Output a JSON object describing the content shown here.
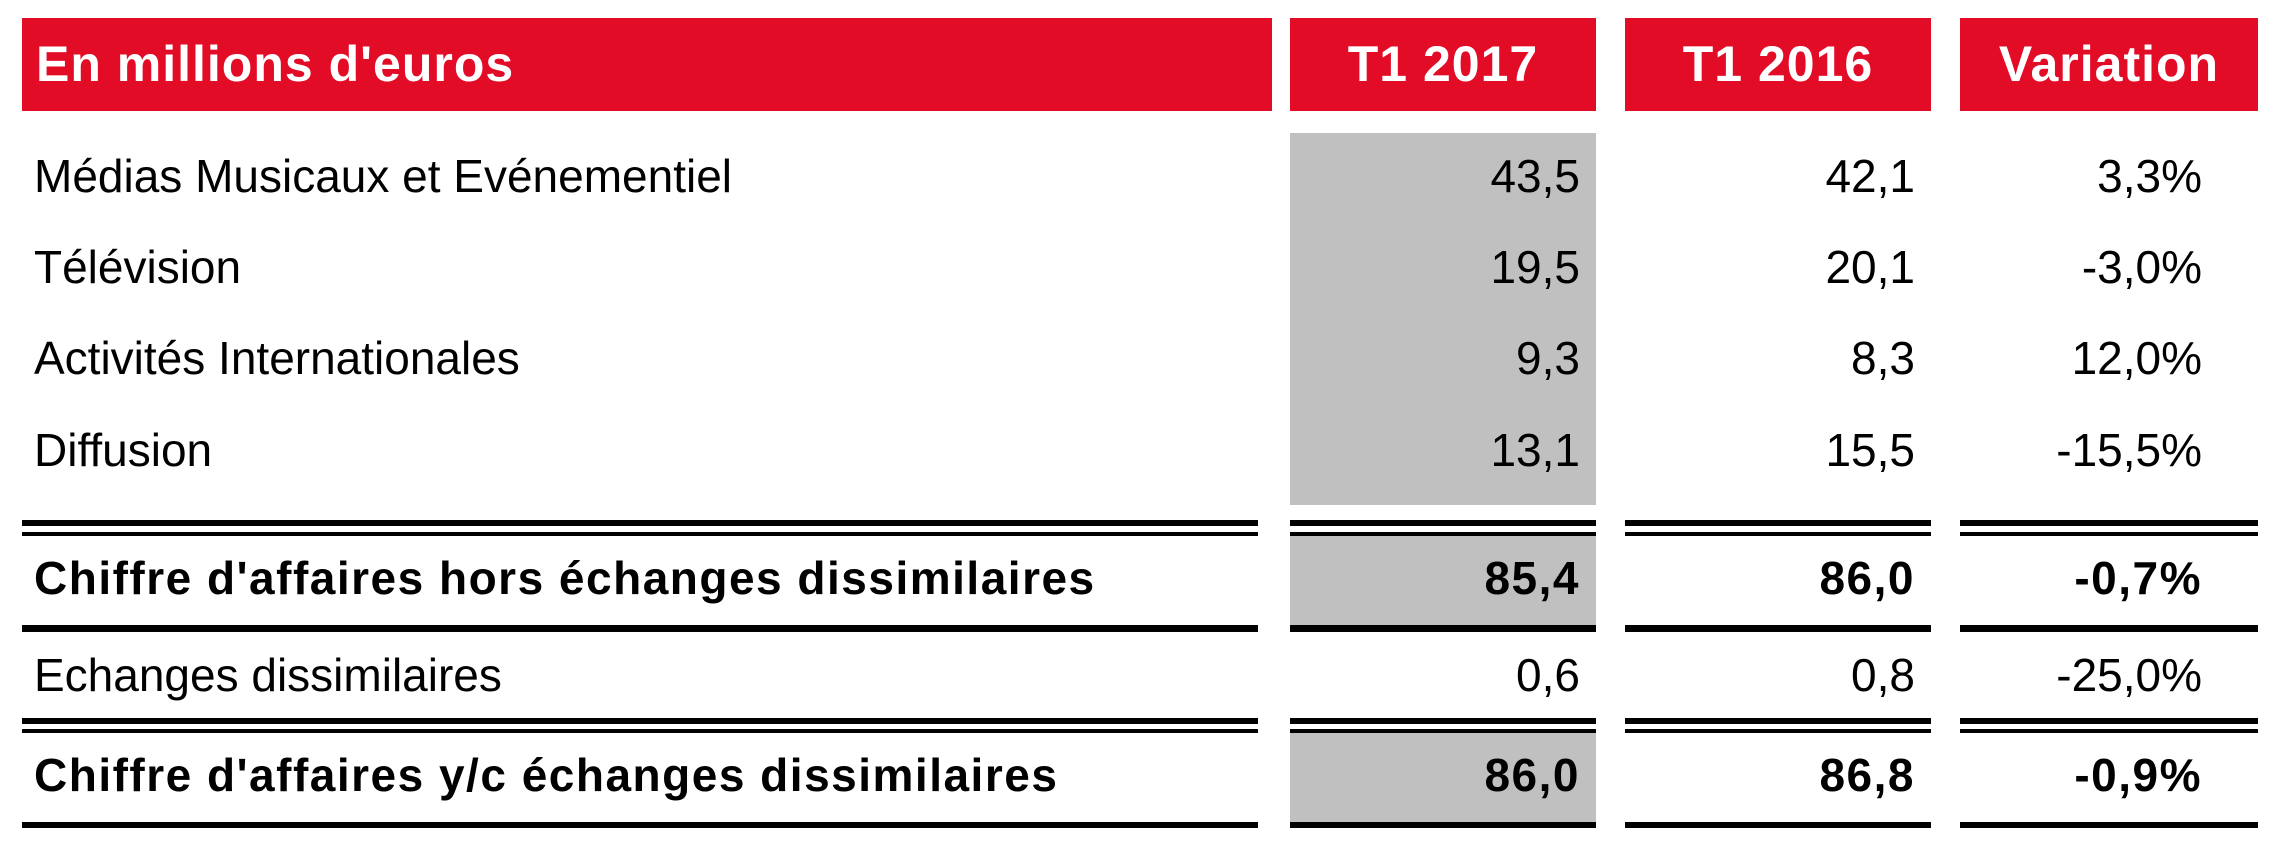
{
  "table": {
    "headers": [
      "En millions d'euros",
      "T1 2017",
      "T1 2016",
      "Variation"
    ],
    "rows": [
      {
        "label": "Médias Musicaux et Evénementiel",
        "t1_2017": "43,5",
        "t1_2016": "42,1",
        "variation": "3,3%",
        "bold": false
      },
      {
        "label": "Télévision",
        "t1_2017": "19,5",
        "t1_2016": "20,1",
        "variation": "-3,0%",
        "bold": false
      },
      {
        "label": "Activités Internationales",
        "t1_2017": "9,3",
        "t1_2016": "8,3",
        "variation": "12,0%",
        "bold": false
      },
      {
        "label": "Diffusion",
        "t1_2017": "13,1",
        "t1_2016": "15,5",
        "variation": "-15,5%",
        "bold": false
      },
      {
        "label": "Chiffre d'affaires hors échanges dissimilaires",
        "t1_2017": "85,4",
        "t1_2016": "86,0",
        "variation": "-0,7%",
        "bold": true
      },
      {
        "label": "Echanges dissimilaires",
        "t1_2017": "0,6",
        "t1_2016": "0,8",
        "variation": "-25,0%",
        "bold": false
      },
      {
        "label": "Chiffre d'affaires y/c échanges dissimilaires",
        "t1_2017": "86,0",
        "t1_2016": "86,8",
        "variation": "-0,9%",
        "bold": true
      }
    ]
  },
  "colors": {
    "header_bg": "#e30c27",
    "header_text": "#ffffff",
    "highlight_column": "#c0c0c0",
    "rule": "#000000"
  }
}
